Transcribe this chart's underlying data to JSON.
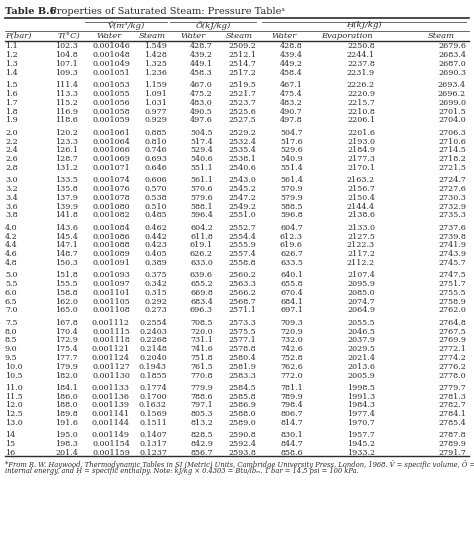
{
  "title_bold": "Table B.6",
  "title_normal": " Properties of Saturated Steam: Pressure Tableᵃ",
  "group_labels": [
    "Ṽ(m³/kg)",
    "Ô(kJ/kg)",
    "Ḥ(kJ/kg)"
  ],
  "col_headers": [
    "P(bar)",
    "T(°C)",
    "Water",
    "Steam",
    "Water",
    "Steam",
    "Water",
    "Evaporation",
    "Steam"
  ],
  "rows": [
    [
      "1.1",
      "102.3",
      "0.001046",
      "1.549",
      "428.7",
      "2509.2",
      "428.8",
      "2250.8",
      "2679.6"
    ],
    [
      "1.2",
      "104.8",
      "0.001048",
      "1.428",
      "439.2",
      "2512.1",
      "439.4",
      "2244.1",
      "2683.4"
    ],
    [
      "1.3",
      "107.1",
      "0.001049",
      "1.325",
      "449.1",
      "2514.7",
      "449.2",
      "2237.8",
      "2687.0"
    ],
    [
      "1.4",
      "109.3",
      "0.001051",
      "1.236",
      "458.3",
      "2517.2",
      "458.4",
      "2231.9",
      "2690.3"
    ],
    [
      "1.5",
      "111.4",
      "0.001053",
      "1.159",
      "467.0",
      "2519.5",
      "467.1",
      "2226.2",
      "2693.4"
    ],
    [
      "1.6",
      "113.3",
      "0.001055",
      "1.091",
      "475.2",
      "2521.7",
      "475.4",
      "2220.9",
      "2696.2"
    ],
    [
      "1.7",
      "115.2",
      "0.001056",
      "1.031",
      "483.0",
      "2523.7",
      "483.2",
      "2215.7",
      "2699.0"
    ],
    [
      "1.8",
      "116.9",
      "0.001058",
      "0.977",
      "490.5",
      "2525.6",
      "490.7",
      "2210.8",
      "2701.5"
    ],
    [
      "1.9",
      "118.6",
      "0.001059",
      "0.929",
      "497.6",
      "2527.5",
      "497.8",
      "2206.1",
      "2704.0"
    ],
    [
      "2.0",
      "120.2",
      "0.001061",
      "0.885",
      "504.5",
      "2529.2",
      "504.7",
      "2201.6",
      "2706.3"
    ],
    [
      "2.2",
      "123.3",
      "0.001064",
      "0.810",
      "517.4",
      "2532.4",
      "517.6",
      "2193.0",
      "2710.6"
    ],
    [
      "2.4",
      "126.1",
      "0.001066",
      "0.746",
      "529.4",
      "2535.4",
      "529.6",
      "2184.9",
      "2714.5"
    ],
    [
      "2.6",
      "128.7",
      "0.001069",
      "0.693",
      "540.6",
      "2538.1",
      "540.9",
      "2177.3",
      "2718.2"
    ],
    [
      "2.8",
      "131.2",
      "0.001071",
      "0.646",
      "551.1",
      "2540.6",
      "551.4",
      "2170.1",
      "2721.5"
    ],
    [
      "3.0",
      "133.5",
      "0.001074",
      "0.606",
      "561.1",
      "2543.0",
      "561.4",
      "2163.2",
      "2724.7"
    ],
    [
      "3.2",
      "135.8",
      "0.001076",
      "0.570",
      "570.6",
      "2545.2",
      "570.9",
      "2156.7",
      "2727.6"
    ],
    [
      "3.4",
      "137.9",
      "0.001078",
      "0.538",
      "579.6",
      "2547.2",
      "579.9",
      "2150.4",
      "2730.3"
    ],
    [
      "3.6",
      "139.9",
      "0.001080",
      "0.510",
      "588.1",
      "2549.2",
      "588.5",
      "2144.4",
      "2732.9"
    ],
    [
      "3.8",
      "141.8",
      "0.001082",
      "0.485",
      "596.4",
      "2551.0",
      "596.8",
      "2138.6",
      "2735.3"
    ],
    [
      "4.0",
      "143.6",
      "0.001084",
      "0.462",
      "604.2",
      "2552.7",
      "604.7",
      "2133.0",
      "2737.6"
    ],
    [
      "4.2",
      "145.4",
      "0.001086",
      "0.442",
      "611.8",
      "2554.4",
      "612.3",
      "2127.5",
      "2739.8"
    ],
    [
      "4.4",
      "147.1",
      "0.001088",
      "0.423",
      "619.1",
      "2555.9",
      "619.6",
      "2122.3",
      "2741.9"
    ],
    [
      "4.6",
      "148.7",
      "0.001089",
      "0.405",
      "626.2",
      "2557.4",
      "626.7",
      "2117.2",
      "2743.9"
    ],
    [
      "4.8",
      "150.3",
      "0.001091",
      "0.389",
      "633.0",
      "2558.8",
      "633.5",
      "2112.2",
      "2745.7"
    ],
    [
      "5.0",
      "151.8",
      "0.001093",
      "0.375",
      "639.6",
      "2560.2",
      "640.1",
      "2107.4",
      "2747.5"
    ],
    [
      "5.5",
      "155.5",
      "0.001097",
      "0.342",
      "655.2",
      "2563.3",
      "655.8",
      "2095.9",
      "2751.7"
    ],
    [
      "6.0",
      "158.8",
      "0.001101",
      "0.315",
      "669.8",
      "2566.2",
      "670.4",
      "2085.0",
      "2755.5"
    ],
    [
      "6.5",
      "162.0",
      "0.001105",
      "0.292",
      "683.4",
      "2568.7",
      "684.1",
      "2074.7",
      "2758.9"
    ],
    [
      "7.0",
      "165.0",
      "0.001108",
      "0.273",
      "696.3",
      "2571.1",
      "697.1",
      "2064.9",
      "2762.0"
    ],
    [
      "7.5",
      "167.8",
      "0.001112",
      "0.2554",
      "708.5",
      "2573.3",
      "709.3",
      "2055.5",
      "2764.8"
    ],
    [
      "8.0",
      "170.4",
      "0.001115",
      "0.2403",
      "720.0",
      "2575.5",
      "720.9",
      "2046.5",
      "2767.5"
    ],
    [
      "8.5",
      "172.9",
      "0.001118",
      "0.2268",
      "731.1",
      "2577.1",
      "732.0",
      "2037.9",
      "2769.9"
    ],
    [
      "9.0",
      "175.4",
      "0.001121",
      "0.2148",
      "741.6",
      "2578.8",
      "742.6",
      "2029.5",
      "2772.1"
    ],
    [
      "9.5",
      "177.7",
      "0.001124",
      "0.2040",
      "751.8",
      "2580.4",
      "752.8",
      "2021.4",
      "2774.2"
    ],
    [
      "10.0",
      "179.9",
      "0.001127",
      "0.1943",
      "761.5",
      "2581.9",
      "762.6",
      "2013.6",
      "2776.2"
    ],
    [
      "10.5",
      "182.0",
      "0.001130",
      "0.1855",
      "770.8",
      "2583.3",
      "772.0",
      "2005.9",
      "2778.0"
    ],
    [
      "11.0",
      "184.1",
      "0.001133",
      "0.1774",
      "779.9",
      "2584.5",
      "781.1",
      "1998.5",
      "2779.7"
    ],
    [
      "11.5",
      "186.0",
      "0.001136",
      "0.1700",
      "788.6",
      "2585.8",
      "789.9",
      "1991.3",
      "2781.3"
    ],
    [
      "12.0",
      "188.0",
      "0.001139",
      "0.1632",
      "797.1",
      "2586.9",
      "798.4",
      "1984.3",
      "2782.7"
    ],
    [
      "12.5",
      "189.8",
      "0.001141",
      "0.1569",
      "805.3",
      "2588.0",
      "806.7",
      "1977.4",
      "2784.1"
    ],
    [
      "13.0",
      "191.6",
      "0.001144",
      "0.1511",
      "813.2",
      "2589.0",
      "814.7",
      "1970.7",
      "2785.4"
    ],
    [
      "14",
      "195.0",
      "0.001149",
      "0.1407",
      "828.5",
      "2590.8",
      "830.1",
      "1957.7",
      "2787.8"
    ],
    [
      "15",
      "198.3",
      "0.001154",
      "0.1317",
      "842.9",
      "2592.4",
      "844.7",
      "1945.2",
      "2789.9"
    ],
    [
      "16",
      "201.4",
      "0.001159",
      "0.1237",
      "856.7",
      "2593.8",
      "858.6",
      "1933.2",
      "2791.7"
    ]
  ],
  "blank_after_rows": [
    3,
    8,
    13,
    18,
    23,
    28,
    35,
    40
  ],
  "footnote_line1": "*From R. W. Haywood, Thermodynamic Tables in SI (Metric) Units, Cambridge University Press, London, 1968. Ṽ = specific volume, Ô = specific",
  "footnote_line2": "internal energy, and Ḥ = specific enthalpy. Note: kJ/kg × 0.4303 = Btu/lbₘ. 1 bar = 14.5 psi = 100 kPa.",
  "bg_color": "#ffffff",
  "text_color": "#2b2b2b",
  "fontsize_data": 5.8,
  "fontsize_header": 6.0,
  "fontsize_title": 7.0,
  "fontsize_footnote": 4.9
}
